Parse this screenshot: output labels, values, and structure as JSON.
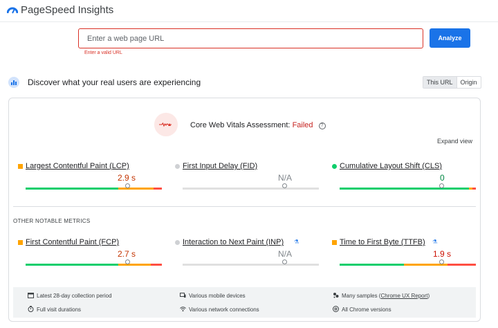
{
  "app": {
    "title": "PageSpeed Insights"
  },
  "search": {
    "placeholder": "Enter a web page URL",
    "error": "Enter a valid URL",
    "button": "Analyze"
  },
  "crux": {
    "title": "Discover what your real users are experiencing",
    "toggle": {
      "this_url": "This URL",
      "origin": "Origin",
      "selected": "This URL"
    },
    "assessment_label": "Core Web Vitals Assessment:",
    "assessment_status": "Failed",
    "expand": "Expand view",
    "other_title": "OTHER NOTABLE METRICS",
    "metrics": {
      "lcp": {
        "name": "Largest Contentful Paint (LCP)",
        "value": "2.9 s",
        "rating": "needs-improvement",
        "distribution": [
          0.68,
          0.26,
          0.06
        ]
      },
      "fid": {
        "name": "First Input Delay (FID)",
        "value": "N/A",
        "rating": "none"
      },
      "cls": {
        "name": "Cumulative Layout Shift (CLS)",
        "value": "0",
        "rating": "good",
        "distribution": [
          0.95,
          0.03,
          0.02
        ]
      },
      "fcp": {
        "name": "First Contentful Paint (FCP)",
        "value": "2.7 s",
        "rating": "needs-improvement",
        "distribution": [
          0.68,
          0.24,
          0.08
        ]
      },
      "inp": {
        "name": "Interaction to Next Paint (INP)",
        "value": "N/A",
        "rating": "none",
        "experimental": true
      },
      "ttfb": {
        "name": "Time to First Byte (TTFB)",
        "value": "1.9 s",
        "rating": "poor",
        "experimental": true,
        "distribution": [
          0.47,
          0.32,
          0.21
        ]
      }
    },
    "footer": {
      "period": "Latest 28-day collection period",
      "devices": "Various mobile devices",
      "samples_prefix": "Many samples (",
      "samples_link": "Chrome UX Report",
      "samples_suffix": ")",
      "durations": "Full visit durations",
      "network": "Various network connections",
      "versions": "All Chrome versions"
    }
  },
  "colors": {
    "accent": "#1a73e8",
    "good": "#0cce6b",
    "needs_improvement": "#ffa400",
    "poor": "#ff4e42",
    "failed_text": "#c5221f"
  }
}
